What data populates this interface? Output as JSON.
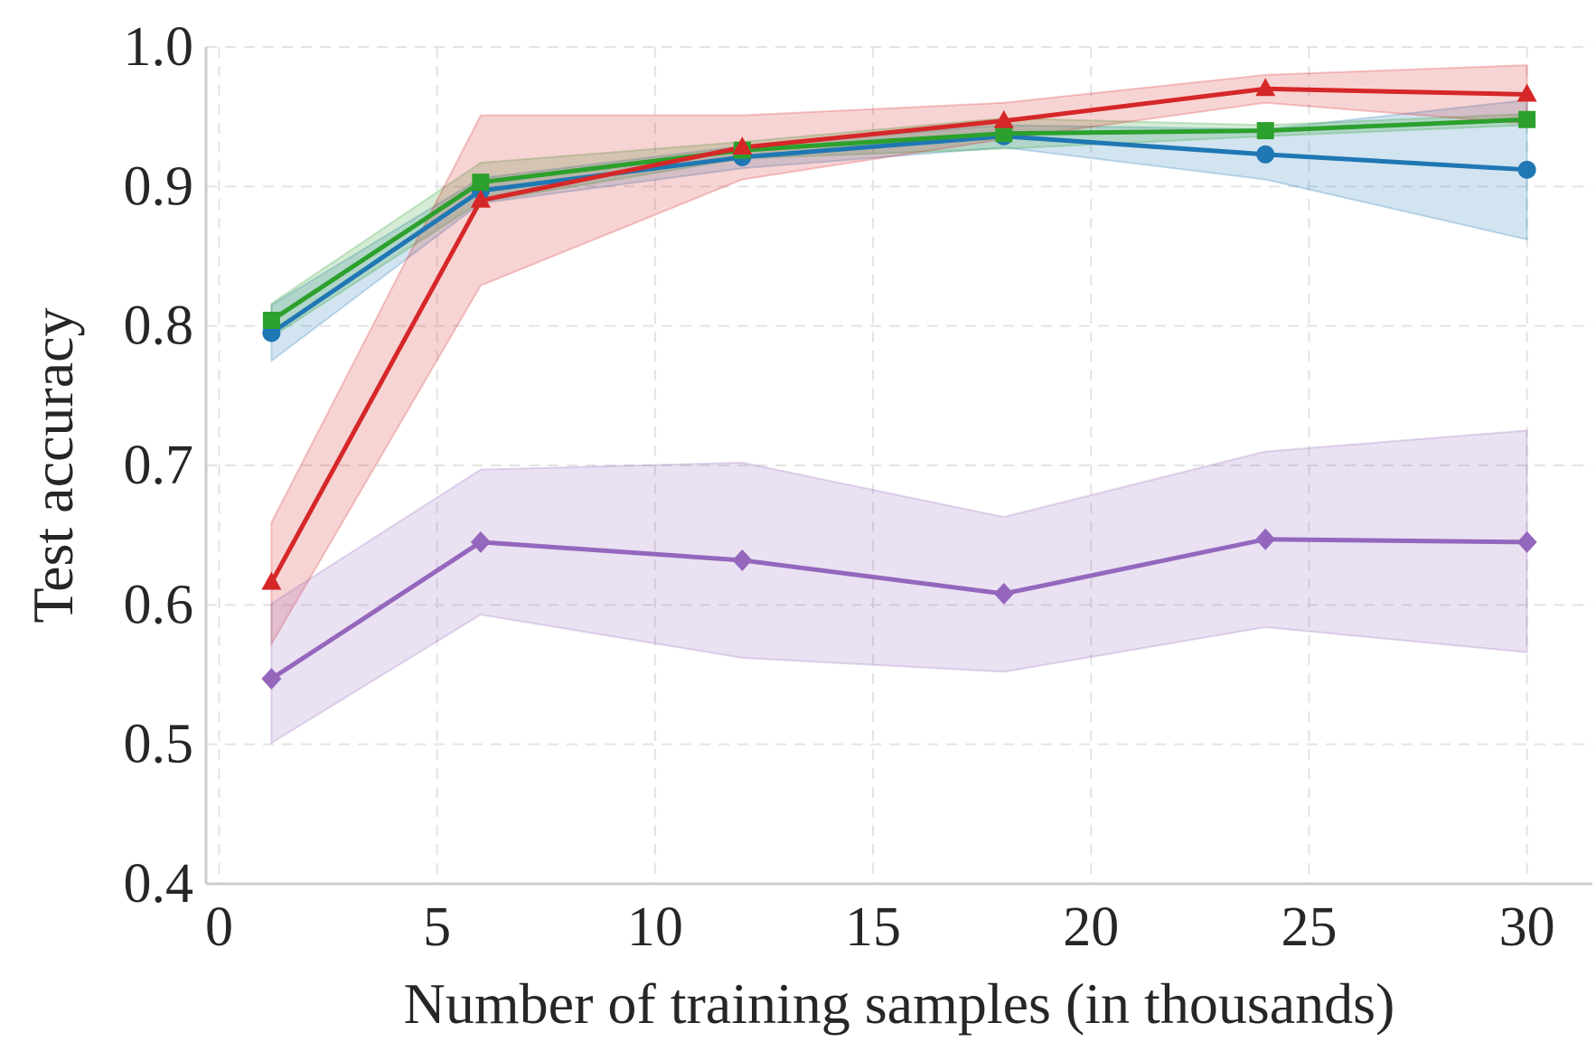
{
  "chart_data": {
    "type": "line",
    "title": "",
    "xlabel": "Number of training samples (in thousands)",
    "ylabel": "Test accuracy",
    "xlim": [
      -0.3,
      31.5
    ],
    "ylim": [
      0.4,
      1.0
    ],
    "xticks": [
      0,
      5,
      10,
      15,
      20,
      25,
      30
    ],
    "xtick_labels": [
      "0",
      "5",
      "10",
      "15",
      "20",
      "25",
      "30"
    ],
    "yticks": [
      0.4,
      0.5,
      0.6,
      0.7,
      0.8,
      0.9,
      1.0
    ],
    "ytick_labels": [
      "0.4",
      "0.5",
      "0.6",
      "0.7",
      "0.8",
      "0.9",
      "1.0"
    ],
    "grid": true,
    "legend": "none",
    "x": [
      1.2,
      6,
      12,
      18,
      24,
      30
    ],
    "series": [
      {
        "color": "#1f77b4",
        "marker": "circle",
        "values": [
          0.795,
          0.897,
          0.921,
          0.936,
          0.923,
          0.912
        ],
        "lower": [
          0.775,
          0.888,
          0.913,
          0.928,
          0.905,
          0.862
        ],
        "upper": [
          0.815,
          0.906,
          0.929,
          0.944,
          0.941,
          0.962
        ]
      },
      {
        "color": "#2ca02c",
        "marker": "square",
        "values": [
          0.804,
          0.903,
          0.926,
          0.938,
          0.94,
          0.948
        ],
        "lower": [
          0.792,
          0.889,
          0.92,
          0.927,
          0.936,
          0.944
        ],
        "upper": [
          0.816,
          0.917,
          0.932,
          0.949,
          0.944,
          0.952
        ]
      },
      {
        "color": "#d62728",
        "marker": "triangle",
        "values": [
          0.616,
          0.89,
          0.928,
          0.947,
          0.97,
          0.966
        ],
        "lower": [
          0.572,
          0.829,
          0.905,
          0.934,
          0.96,
          0.945
        ],
        "upper": [
          0.659,
          0.951,
          0.951,
          0.96,
          0.98,
          0.987
        ]
      },
      {
        "color": "#9467bd",
        "marker": "diamond",
        "values": [
          0.547,
          0.645,
          0.632,
          0.608,
          0.647,
          0.645
        ],
        "lower": [
          0.501,
          0.593,
          0.562,
          0.552,
          0.584,
          0.566
        ],
        "upper": [
          0.601,
          0.697,
          0.702,
          0.663,
          0.71,
          0.725
        ]
      }
    ]
  }
}
